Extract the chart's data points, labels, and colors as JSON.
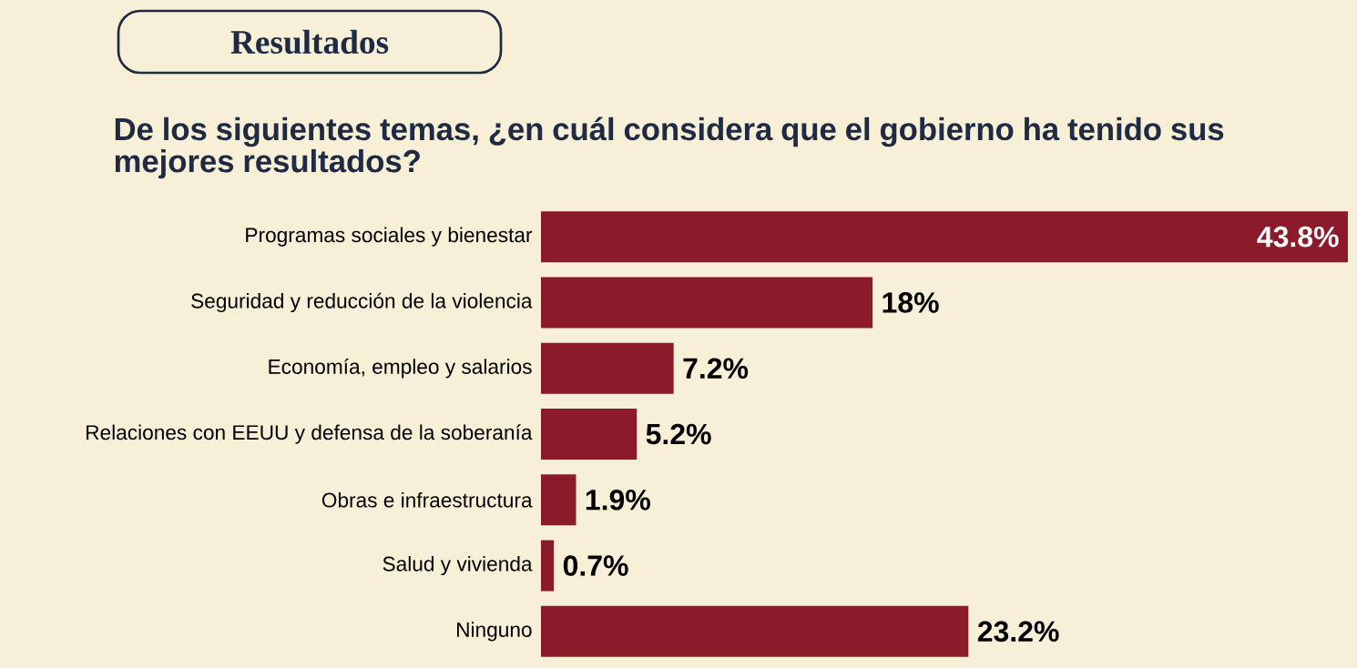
{
  "chart_data": {
    "type": "bar",
    "orientation": "horizontal",
    "title": "Resultados",
    "subtitle": "De los siguientes temas, ¿en cuál considera que el gobierno ha tenido sus mejores resultados?",
    "categories": [
      "Programas sociales y bienestar",
      "Seguridad y reducción de la violencia",
      "Economía, empleo y salarios",
      "Relaciones con EEUU y defensa de la soberanía",
      "Obras e infraestructura",
      "Salud y vivienda",
      "Ninguno"
    ],
    "values": [
      43.8,
      18,
      7.2,
      5.2,
      1.9,
      0.7,
      23.2
    ],
    "value_labels": [
      "43.8%",
      "18%",
      "7.2%",
      "5.2%",
      "1.9%",
      "0.7%",
      "23.2%"
    ],
    "color": "#8b1a2b"
  }
}
